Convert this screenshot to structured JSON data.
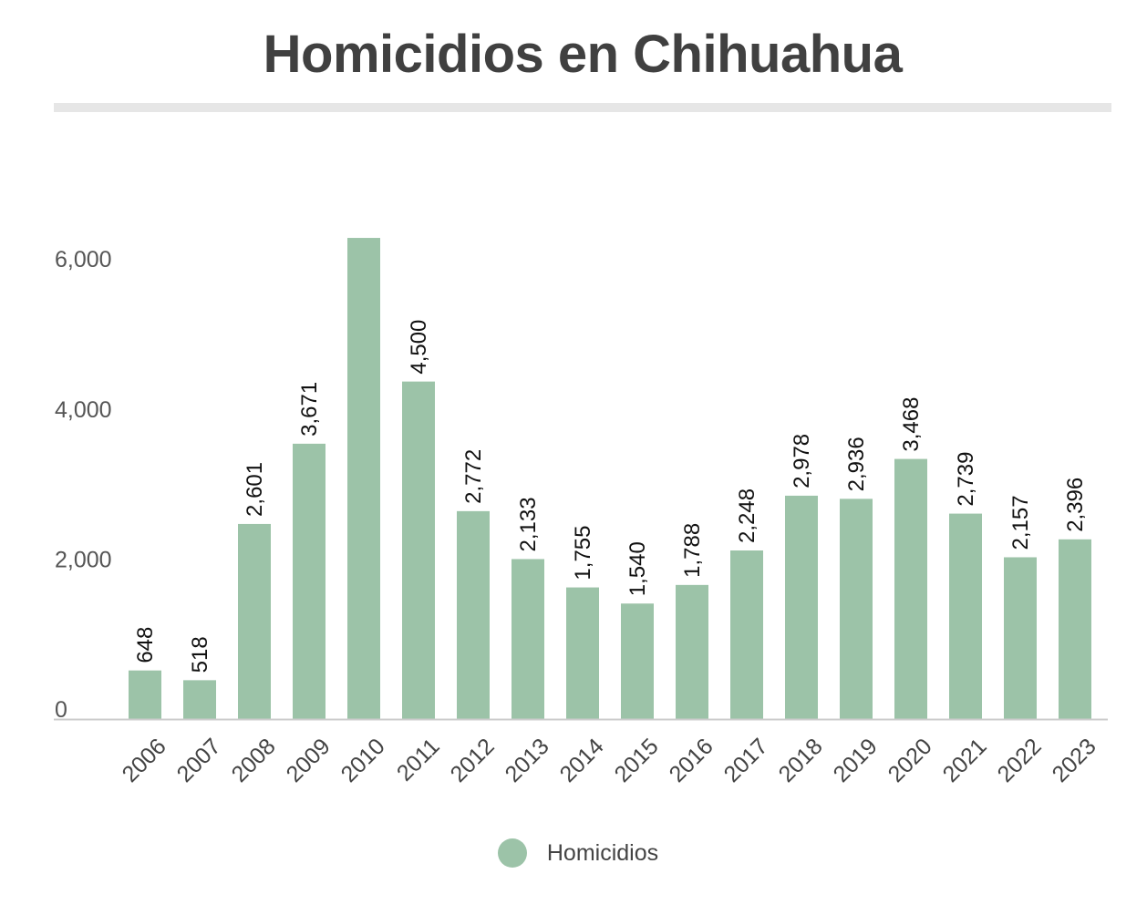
{
  "chart_data": {
    "type": "bar",
    "title": "Homicidios en Chihuahua",
    "xlabel": "",
    "ylabel": "",
    "categories": [
      "2006",
      "2007",
      "2008",
      "2009",
      "2010",
      "2011",
      "2012",
      "2013",
      "2014",
      "2015",
      "2016",
      "2017",
      "2018",
      "2019",
      "2020",
      "2021",
      "2022",
      "2023"
    ],
    "series": [
      {
        "name": "Homicidios",
        "color": "#9cc3a8",
        "values": [
          648,
          518,
          2601,
          3671,
          6415,
          4500,
          2772,
          2133,
          1755,
          1540,
          1788,
          2248,
          2978,
          2936,
          3468,
          2739,
          2157,
          2396
        ],
        "labels": [
          "648",
          "518",
          "2,601",
          "3,671",
          "",
          "4,500",
          "2,772",
          "2,133",
          "1,755",
          "1,540",
          "1,788",
          "2,248",
          "2,978",
          "2,936",
          "3,468",
          "2,739",
          "2,157",
          "2,396"
        ]
      }
    ],
    "yticks": [
      0,
      2000,
      4000,
      6000
    ],
    "ytick_labels": [
      "0",
      "2,000",
      "4,000",
      "6,000"
    ],
    "ylim": [
      0,
      6400
    ],
    "grid": false,
    "legend_position": "bottom-center",
    "axis_color": "#cccccc"
  }
}
